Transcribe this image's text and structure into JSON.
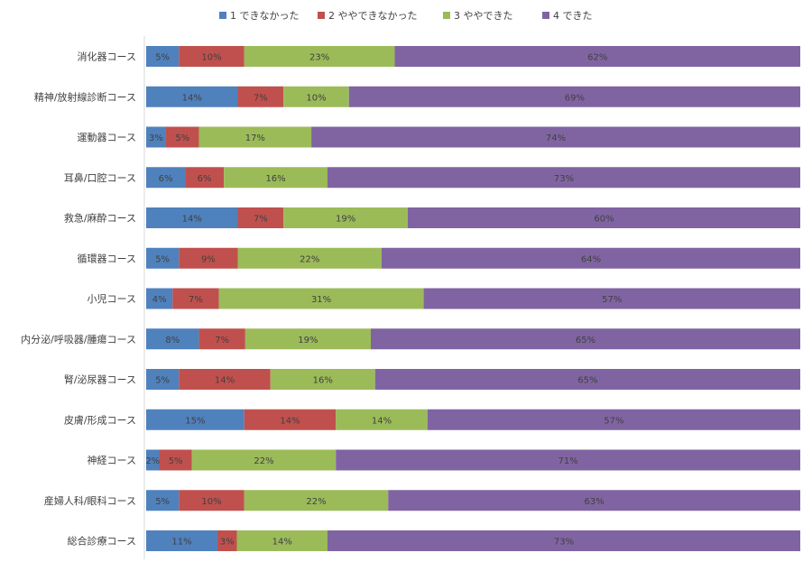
{
  "chart_data": {
    "type": "bar",
    "orientation": "horizontal",
    "stacked": "percent",
    "grid": false,
    "legend_position": "top",
    "categories": [
      "消化器コース",
      "精神/放射線診断コース",
      "運動器コース",
      "耳鼻/口腔コース",
      "救急/麻酔コース",
      "循環器コース",
      "小児コース",
      "内分泌/呼吸器/腫瘍コース",
      "腎/泌尿器コース",
      "皮膚/形成コース",
      "神経コース",
      "産婦人科/眼科コース",
      "総合診療コース"
    ],
    "series": [
      {
        "name": "1 できなかった",
        "color": "#4f81bd",
        "values": [
          5,
          14,
          3,
          6,
          14,
          5,
          4,
          8,
          5,
          15,
          2,
          5,
          11
        ],
        "labels": [
          "5%",
          "14%",
          "3%",
          "6%",
          "14%",
          "5%",
          "4%",
          "8%",
          "5%",
          "15%",
          "2%",
          "5%",
          "11%"
        ]
      },
      {
        "name": "2 ややできなかった",
        "color": "#c0504d",
        "values": [
          10,
          7,
          5,
          6,
          7,
          9,
          7,
          7,
          14,
          14,
          5,
          10,
          3
        ],
        "labels": [
          "10%",
          "7%",
          "5%",
          "6%",
          "7%",
          "9%",
          "7%",
          "7%",
          "14%",
          "14%",
          "5%",
          "10%",
          "3%"
        ]
      },
      {
        "name": "3 ややできた",
        "color": "#9bbb59",
        "values": [
          23,
          10,
          17,
          16,
          19,
          22,
          31,
          19,
          16,
          14,
          22,
          22,
          14
        ],
        "labels": [
          "23%",
          "10%",
          "17%",
          "16%",
          "19%",
          "22%",
          "31%",
          "19%",
          "16%",
          "14%",
          "22%",
          "22%",
          "14%"
        ]
      },
      {
        "name": "4 できた",
        "color": "#8064a2",
        "values": [
          62,
          69,
          74,
          73,
          60,
          64,
          57,
          65,
          65,
          57,
          71,
          63,
          73
        ],
        "labels": [
          "62%",
          "69%",
          "74%",
          "73%",
          "60%",
          "64%",
          "57%",
          "65%",
          "65%",
          "57%",
          "71%",
          "63%",
          "73%"
        ]
      }
    ]
  }
}
